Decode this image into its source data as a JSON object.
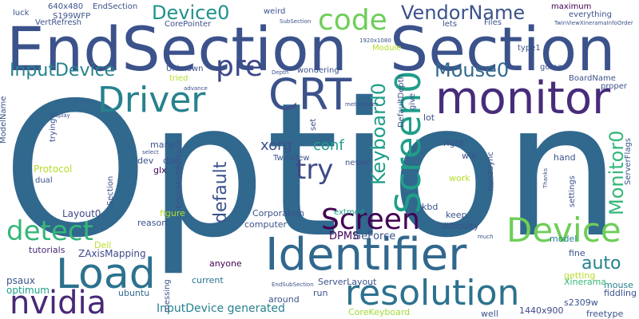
{
  "words": [
    {
      "text": "Option",
      "color": "#31688e"
    },
    {
      "text": "EndSection",
      "color": "#3b528b"
    },
    {
      "text": "Section",
      "color": "#3b528b"
    },
    {
      "text": "monitor",
      "color": "#472c7a"
    },
    {
      "text": "Identifier",
      "color": "#31688e"
    },
    {
      "text": "Load",
      "color": "#2c728e"
    },
    {
      "text": "Driver",
      "color": "#26828e"
    },
    {
      "text": "CRT",
      "color": "#3b528b"
    },
    {
      "text": "resolution",
      "color": "#2c728e"
    },
    {
      "text": "nvidia",
      "color": "#482878"
    },
    {
      "text": "Device",
      "color": "#6ece58"
    },
    {
      "text": "detect",
      "color": "#35b779"
    },
    {
      "text": "Screen0",
      "color": "#1f9e89"
    },
    {
      "text": "code",
      "color": "#6ece58"
    },
    {
      "text": "Screen",
      "color": "#440154"
    },
    {
      "text": "pre",
      "color": "#3e4989"
    },
    {
      "text": "try",
      "color": "#3e4989"
    },
    {
      "text": "Device0",
      "color": "#21918c"
    },
    {
      "text": "VendorName",
      "color": "#3b528b"
    },
    {
      "text": "InputDevice",
      "color": "#26828e"
    },
    {
      "text": "Mouse0",
      "color": "#31688e"
    },
    {
      "text": "Keyboard0",
      "color": "#1f9e89"
    },
    {
      "text": "Monitor0",
      "color": "#35b779"
    },
    {
      "text": "default",
      "color": "#3b528b"
    },
    {
      "text": "auto",
      "color": "#26828e"
    },
    {
      "text": "xorg",
      "color": "#3b528b"
    },
    {
      "text": "conf",
      "color": "#1f9e89"
    },
    {
      "text": "InputDevice generated",
      "color": "#26828e"
    },
    {
      "text": "DPMS",
      "color": "#440154"
    },
    {
      "text": "GeForce",
      "color": "#3b528b"
    },
    {
      "text": "Protocol",
      "color": "#b5de2b"
    },
    {
      "text": "Layout0",
      "color": "#3e4989"
    },
    {
      "text": "ZAxisMapping",
      "color": "#3e4989"
    },
    {
      "text": "tutorials",
      "color": "#482878"
    },
    {
      "text": "psaux",
      "color": "#3b528b"
    },
    {
      "text": "optimum",
      "color": "#1f9e89"
    },
    {
      "text": "ubuntu",
      "color": "#31688e"
    },
    {
      "text": "current",
      "color": "#2c728e"
    },
    {
      "text": "anyone",
      "color": "#440154"
    },
    {
      "text": "messing",
      "color": "#3b528b"
    },
    {
      "text": "around",
      "color": "#3b528b"
    },
    {
      "text": "computer",
      "color": "#3b528b"
    },
    {
      "text": "Corporation",
      "color": "#3b528b"
    },
    {
      "text": "ServerLayout",
      "color": "#3b528b"
    },
    {
      "text": "CoreKeyboard",
      "color": "#a0da39"
    },
    {
      "text": "run",
      "color": "#3b528b"
    },
    {
      "text": "well",
      "color": "#3b528b"
    },
    {
      "text": "1440x900",
      "color": "#3e4989"
    },
    {
      "text": "freetype",
      "color": "#3b528b"
    },
    {
      "text": "s2309w",
      "color": "#3b528b"
    },
    {
      "text": "fiddling",
      "color": "#3b528b"
    },
    {
      "text": "mouse",
      "color": "#26828e"
    },
    {
      "text": "Xinerama",
      "color": "#35b779"
    },
    {
      "text": "getting",
      "color": "#b5de2b"
    },
    {
      "text": "fine",
      "color": "#3b528b"
    },
    {
      "text": "model",
      "color": "#26828e"
    },
    {
      "text": "keep",
      "color": "#3b528b"
    },
    {
      "text": "difficulty",
      "color": "#3b528b"
    },
    {
      "text": "kbd",
      "color": "#3b528b"
    },
    {
      "text": "extmod",
      "color": "#1f9e89"
    },
    {
      "text": "figure",
      "color": "#b5de2b"
    },
    {
      "text": "reason",
      "color": "#3b528b"
    },
    {
      "text": "Dell",
      "color": "#b5de2b"
    },
    {
      "text": "glx",
      "color": "#440154"
    },
    {
      "text": "dev",
      "color": "#3b528b"
    },
    {
      "text": "dbe",
      "color": "#3b528b"
    },
    {
      "text": "many",
      "color": "#3b528b"
    },
    {
      "text": "Emulate3Buttons",
      "color": "#3b528b"
    },
    {
      "text": "Section",
      "color": "#3b528b"
    },
    {
      "text": "TwinView",
      "color": "#3b528b"
    },
    {
      "text": "newer",
      "color": "#3b528b"
    },
    {
      "text": "work",
      "color": "#b5de2b"
    },
    {
      "text": "will",
      "color": "#3b528b"
    },
    {
      "text": "right",
      "color": "#3b528b"
    },
    {
      "text": "HorizSync",
      "color": "#3b528b"
    },
    {
      "text": "settings",
      "color": "#3b528b"
    },
    {
      "text": "hand",
      "color": "#3b528b"
    },
    {
      "text": "ServerFlags",
      "color": "#3b528b"
    },
    {
      "text": "lot",
      "color": "#3b528b"
    },
    {
      "text": "give",
      "color": "#3b528b"
    },
    {
      "text": "set",
      "color": "#3b528b"
    },
    {
      "text": "DefaultDepth",
      "color": "#3b528b"
    },
    {
      "text": "wondering",
      "color": "#3b528b"
    },
    {
      "text": "tried",
      "color": "#b5de2b"
    },
    {
      "text": "Unknown",
      "color": "#3b528b"
    },
    {
      "text": "Module",
      "color": "#b5de2b"
    },
    {
      "text": "type1",
      "color": "#3b528b"
    },
    {
      "text": "going",
      "color": "#3b528b"
    },
    {
      "text": "BoardName",
      "color": "#3b528b"
    },
    {
      "text": "proper",
      "color": "#3b528b"
    },
    {
      "text": "640x480",
      "color": "#3b528b"
    },
    {
      "text": "S199WFP",
      "color": "#3b528b"
    },
    {
      "text": "luck",
      "color": "#3b528b"
    },
    {
      "text": "EndSection",
      "color": "#3b528b"
    },
    {
      "text": "weird",
      "color": "#3b528b"
    },
    {
      "text": "VertRefresh",
      "color": "#3b528b"
    },
    {
      "text": "CorePointer",
      "color": "#3b528b"
    },
    {
      "text": "lets",
      "color": "#3b528b"
    },
    {
      "text": "Files",
      "color": "#3b528b"
    },
    {
      "text": "maximum",
      "color": "#440154"
    },
    {
      "text": "everything",
      "color": "#3b528b"
    },
    {
      "text": "TwinViewXineramaInfoOrder",
      "color": "#3b528b"
    },
    {
      "text": "SubSection",
      "color": "#3b528b"
    },
    {
      "text": "1920x1080",
      "color": "#3b528b"
    },
    {
      "text": "ModelName",
      "color": "#3b528b"
    },
    {
      "text": "Display",
      "color": "#3b528b"
    },
    {
      "text": "Depth",
      "color": "#3b528b"
    },
    {
      "text": "advance",
      "color": "#3b528b"
    },
    {
      "text": "metamodes",
      "color": "#3b528b"
    },
    {
      "text": "trying",
      "color": "#3b528b"
    },
    {
      "text": "select",
      "color": "#3b528b"
    },
    {
      "text": "dual",
      "color": "#3b528b"
    },
    {
      "text": "Thanks",
      "color": "#3b528b"
    },
    {
      "text": "EndSubSection",
      "color": "#3b528b"
    },
    {
      "text": "much",
      "color": "#3b528b"
    }
  ]
}
